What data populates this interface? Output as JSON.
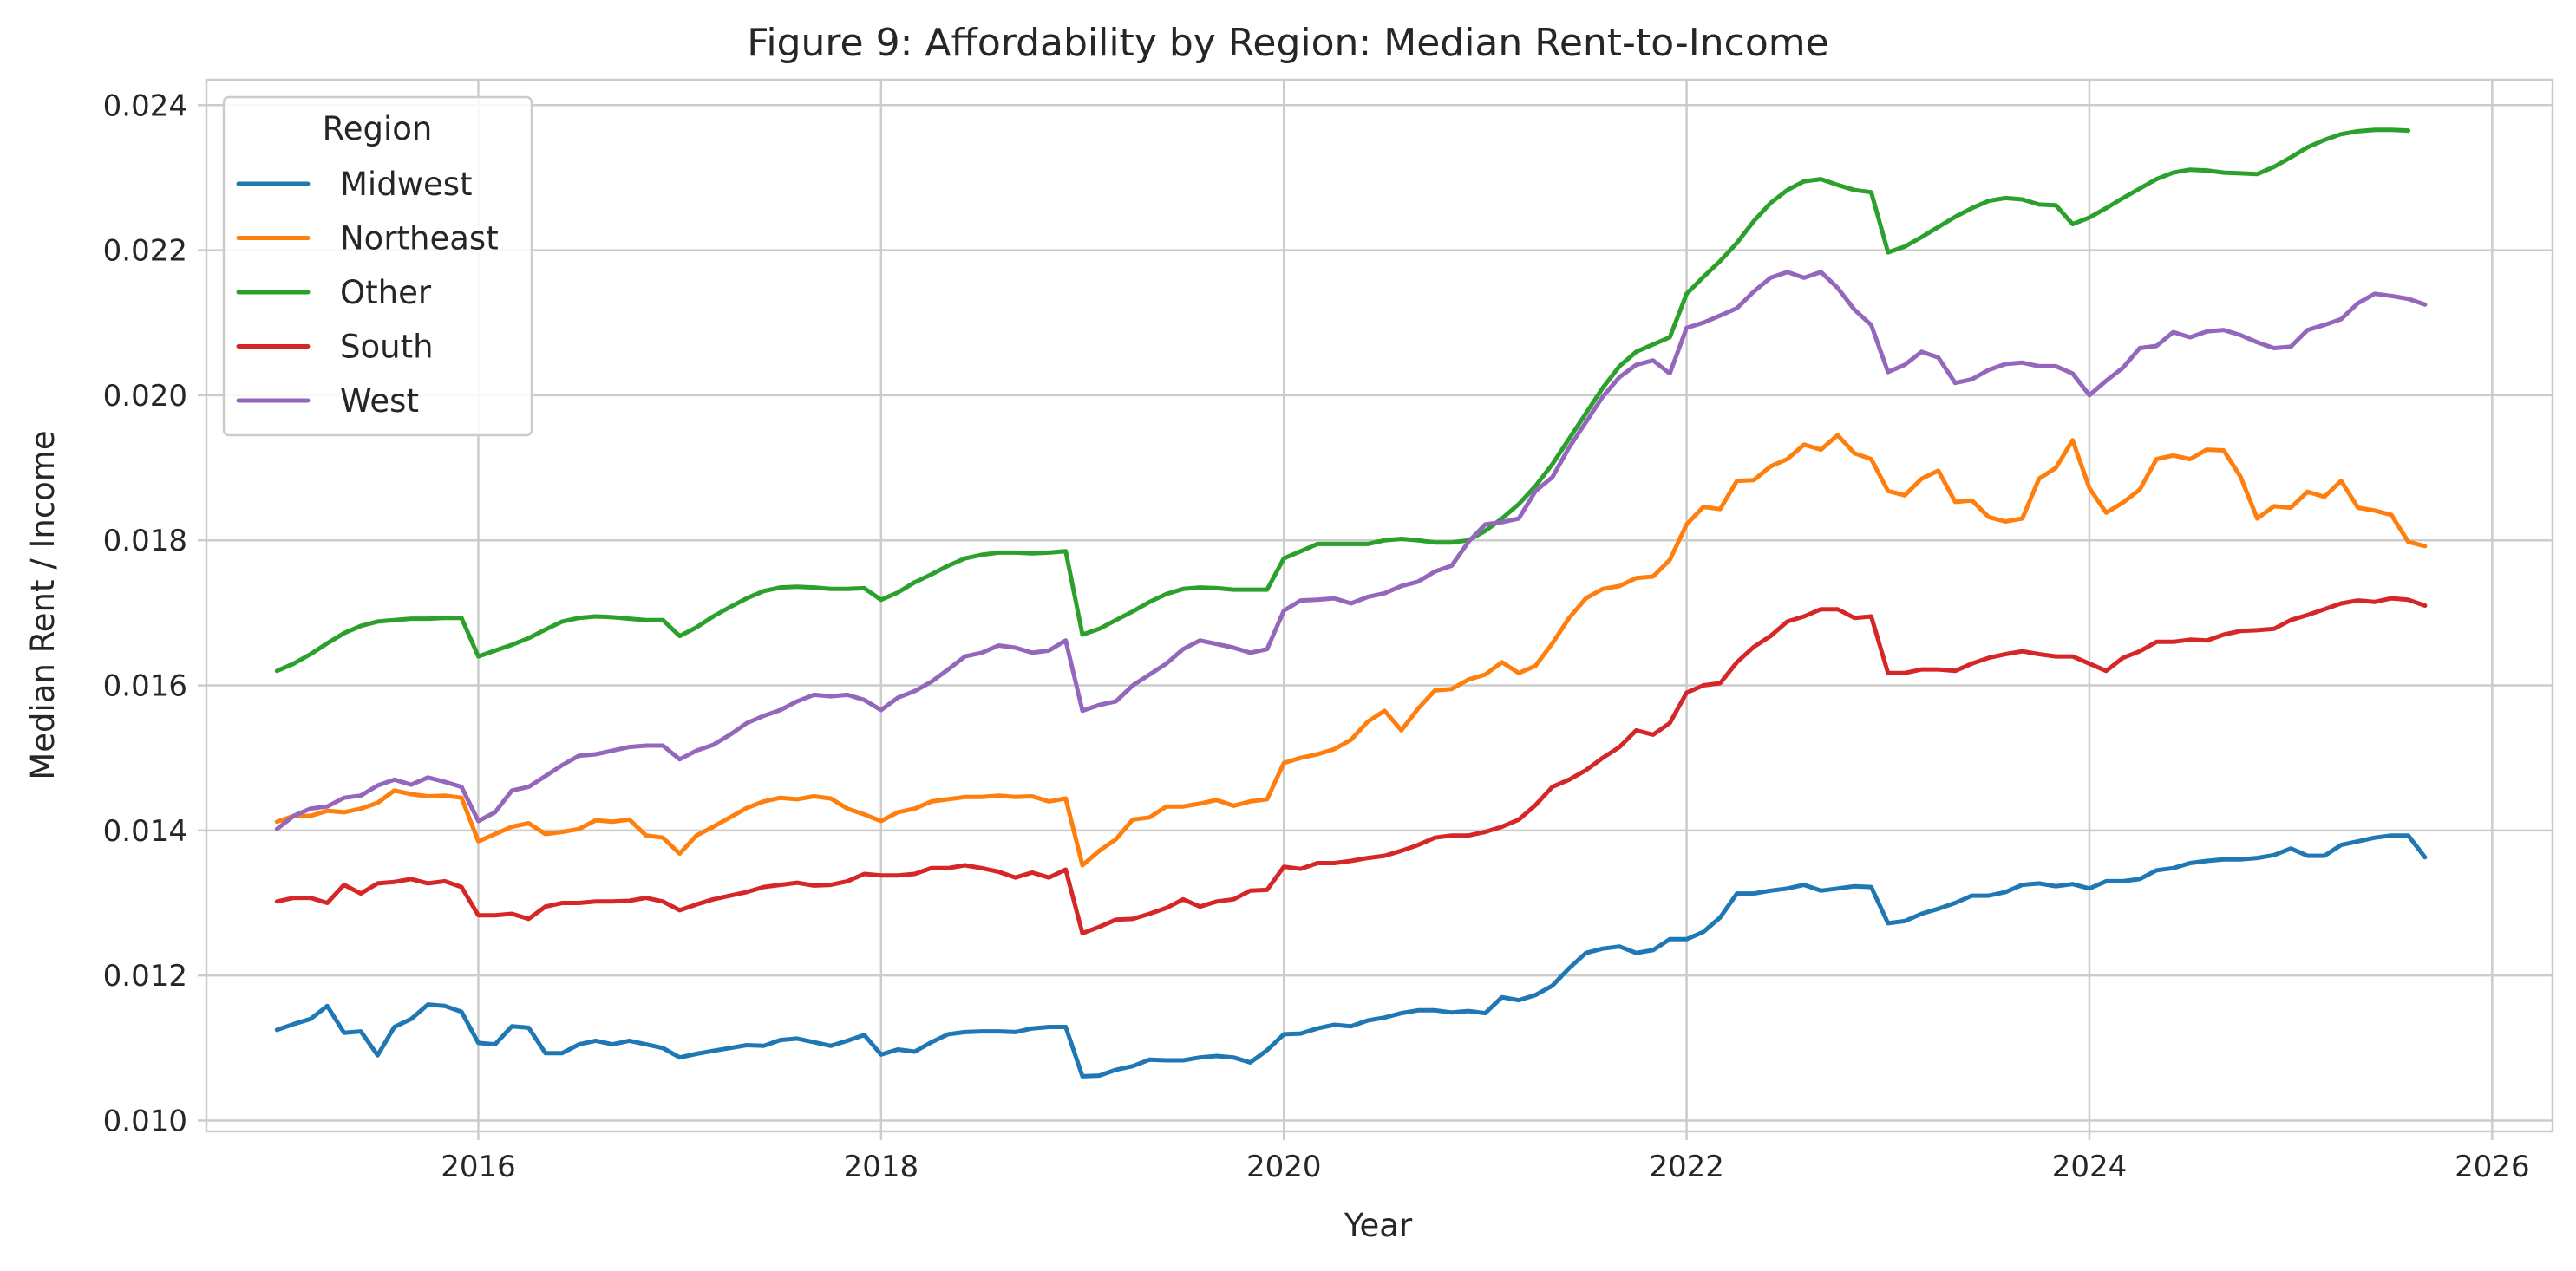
{
  "chart_data": {
    "type": "line",
    "title": "Figure 9: Affordability by Region: Median Rent-to-Income",
    "xlabel": "Year",
    "ylabel": "Median Rent / Income",
    "xlim": [
      2014.65,
      2026.3
    ],
    "ylim": [
      0.00985,
      0.02435
    ],
    "xticks": [
      2016,
      2018,
      2020,
      2022,
      2024,
      2026
    ],
    "yticks": [
      0.01,
      0.012,
      0.014,
      0.016,
      0.018,
      0.02,
      0.022,
      0.024
    ],
    "xtick_labels": [
      "2016",
      "2018",
      "2020",
      "2022",
      "2024",
      "2026"
    ],
    "ytick_labels": [
      "0.010",
      "0.012",
      "0.014",
      "0.016",
      "0.018",
      "0.020",
      "0.022",
      "0.024"
    ],
    "grid": true,
    "legend": {
      "title": "Region",
      "position": "top-left"
    },
    "x_start": "2015-01",
    "x_step": "month",
    "series": [
      {
        "name": "Midwest",
        "color": "#1f77b4",
        "values": [
          0.01125,
          0.01133,
          0.0114,
          0.01158,
          0.01121,
          0.01123,
          0.0109,
          0.01129,
          0.0114,
          0.0116,
          0.01158,
          0.0115,
          0.01107,
          0.01105,
          0.0113,
          0.01128,
          0.01093,
          0.01093,
          0.01105,
          0.0111,
          0.01105,
          0.0111,
          0.01105,
          0.011,
          0.01087,
          0.01092,
          0.01096,
          0.011,
          0.01104,
          0.01103,
          0.01111,
          0.01113,
          0.01108,
          0.01103,
          0.0111,
          0.01118,
          0.01091,
          0.01098,
          0.01095,
          0.01108,
          0.01119,
          0.01122,
          0.01123,
          0.01123,
          0.01122,
          0.01127,
          0.01129,
          0.01129,
          0.01061,
          0.01062,
          0.0107,
          0.01075,
          0.01084,
          0.01083,
          0.01083,
          0.01087,
          0.01089,
          0.01087,
          0.0108,
          0.01097,
          0.01119,
          0.0112,
          0.01127,
          0.01132,
          0.0113,
          0.01138,
          0.01142,
          0.01148,
          0.01152,
          0.01152,
          0.01149,
          0.01151,
          0.01148,
          0.0117,
          0.01166,
          0.01173,
          0.01186,
          0.0121,
          0.01231,
          0.01237,
          0.0124,
          0.01231,
          0.01235,
          0.0125,
          0.0125,
          0.0126,
          0.0128,
          0.01313,
          0.01313,
          0.01317,
          0.0132,
          0.01325,
          0.01317,
          0.0132,
          0.01323,
          0.01322,
          0.01272,
          0.01275,
          0.01285,
          0.01292,
          0.013,
          0.0131,
          0.0131,
          0.01315,
          0.01325,
          0.01327,
          0.01323,
          0.01326,
          0.0132,
          0.0133,
          0.0133,
          0.01333,
          0.01345,
          0.01348,
          0.01355,
          0.01358,
          0.0136,
          0.0136,
          0.01362,
          0.01366,
          0.01375,
          0.01365,
          0.01365,
          0.0138,
          0.01385,
          0.0139,
          0.01393,
          0.01393,
          0.01363
        ]
      },
      {
        "name": "Northeast",
        "color": "#ff7f0e",
        "values": [
          0.01412,
          0.0142,
          0.0142,
          0.01427,
          0.01425,
          0.0143,
          0.01438,
          0.01455,
          0.0145,
          0.01447,
          0.01448,
          0.01445,
          0.01385,
          0.01395,
          0.01405,
          0.0141,
          0.01395,
          0.01398,
          0.01402,
          0.01414,
          0.01412,
          0.01415,
          0.01393,
          0.0139,
          0.01368,
          0.01393,
          0.01405,
          0.01418,
          0.01431,
          0.0144,
          0.01445,
          0.01443,
          0.01447,
          0.01444,
          0.0143,
          0.01422,
          0.01413,
          0.01425,
          0.0143,
          0.0144,
          0.01443,
          0.01446,
          0.01446,
          0.01448,
          0.01446,
          0.01447,
          0.0144,
          0.01444,
          0.01352,
          0.01372,
          0.01388,
          0.01415,
          0.01418,
          0.01433,
          0.01433,
          0.01437,
          0.01442,
          0.01434,
          0.0144,
          0.01443,
          0.01493,
          0.015,
          0.01505,
          0.01512,
          0.01525,
          0.0155,
          0.01565,
          0.01538,
          0.01568,
          0.01593,
          0.01595,
          0.01608,
          0.01615,
          0.01632,
          0.01617,
          0.01627,
          0.01658,
          0.01693,
          0.0172,
          0.01733,
          0.01737,
          0.01748,
          0.0175,
          0.01773,
          0.01822,
          0.01846,
          0.01843,
          0.01882,
          0.01883,
          0.01902,
          0.01912,
          0.01932,
          0.01925,
          0.01945,
          0.0192,
          0.01912,
          0.01868,
          0.01862,
          0.01885,
          0.01896,
          0.01853,
          0.01855,
          0.01832,
          0.01826,
          0.0183,
          0.01885,
          0.019,
          0.01938,
          0.01872,
          0.01838,
          0.01852,
          0.0187,
          0.01912,
          0.01917,
          0.01912,
          0.01925,
          0.01924,
          0.01888,
          0.0183,
          0.01847,
          0.01845,
          0.01867,
          0.0186,
          0.01882,
          0.01845,
          0.01841,
          0.01835,
          0.01798,
          0.01792
        ]
      },
      {
        "name": "Other",
        "color": "#2ca02c",
        "values": [
          0.0162,
          0.0163,
          0.01643,
          0.01658,
          0.01672,
          0.01682,
          0.01688,
          0.0169,
          0.01692,
          0.01692,
          0.01693,
          0.01693,
          0.0164,
          0.01648,
          0.01656,
          0.01665,
          0.01677,
          0.01688,
          0.01693,
          0.01695,
          0.01694,
          0.01692,
          0.0169,
          0.0169,
          0.01668,
          0.0168,
          0.01695,
          0.01708,
          0.0172,
          0.0173,
          0.01735,
          0.01736,
          0.01735,
          0.01733,
          0.01733,
          0.01734,
          0.01718,
          0.01728,
          0.01742,
          0.01753,
          0.01765,
          0.01775,
          0.0178,
          0.01783,
          0.01783,
          0.01782,
          0.01783,
          0.01785,
          0.0167,
          0.01678,
          0.0169,
          0.01702,
          0.01715,
          0.01726,
          0.01733,
          0.01735,
          0.01734,
          0.01732,
          0.01732,
          0.01732,
          0.01775,
          0.01785,
          0.01795,
          0.01795,
          0.01795,
          0.01795,
          0.018,
          0.01802,
          0.018,
          0.01797,
          0.01797,
          0.018,
          0.01813,
          0.0183,
          0.0185,
          0.01875,
          0.01905,
          0.0194,
          0.01975,
          0.0201,
          0.0204,
          0.0206,
          0.0207,
          0.0208,
          0.0214,
          0.02163,
          0.02185,
          0.0221,
          0.0224,
          0.02265,
          0.02283,
          0.02295,
          0.02298,
          0.0229,
          0.02283,
          0.0228,
          0.02197,
          0.02205,
          0.02218,
          0.02232,
          0.02246,
          0.02258,
          0.02268,
          0.02272,
          0.0227,
          0.02263,
          0.02262,
          0.02236,
          0.02245,
          0.02258,
          0.02272,
          0.02285,
          0.02298,
          0.02307,
          0.02311,
          0.0231,
          0.02307,
          0.02306,
          0.02305,
          0.02315,
          0.02328,
          0.02342,
          0.02352,
          0.0236,
          0.02364,
          0.02366,
          0.02366,
          0.02365
        ]
      },
      {
        "name": "South",
        "color": "#d62728",
        "values": [
          0.01302,
          0.01307,
          0.01307,
          0.013,
          0.01325,
          0.01313,
          0.01327,
          0.01329,
          0.01333,
          0.01327,
          0.0133,
          0.01322,
          0.01283,
          0.01283,
          0.01285,
          0.01278,
          0.01295,
          0.013,
          0.013,
          0.01302,
          0.01302,
          0.01303,
          0.01307,
          0.01302,
          0.0129,
          0.01298,
          0.01305,
          0.0131,
          0.01315,
          0.01322,
          0.01325,
          0.01328,
          0.01324,
          0.01325,
          0.0133,
          0.0134,
          0.01338,
          0.01338,
          0.0134,
          0.01348,
          0.01348,
          0.01352,
          0.01348,
          0.01343,
          0.01335,
          0.01342,
          0.01335,
          0.01346,
          0.01258,
          0.01267,
          0.01277,
          0.01278,
          0.01285,
          0.01293,
          0.01305,
          0.01295,
          0.01302,
          0.01305,
          0.01317,
          0.01318,
          0.0135,
          0.01347,
          0.01355,
          0.01355,
          0.01358,
          0.01362,
          0.01365,
          0.01372,
          0.0138,
          0.0139,
          0.01393,
          0.01393,
          0.01398,
          0.01405,
          0.01415,
          0.01435,
          0.0146,
          0.0147,
          0.01483,
          0.015,
          0.01515,
          0.01538,
          0.01532,
          0.01548,
          0.0159,
          0.016,
          0.01603,
          0.01632,
          0.01653,
          0.01668,
          0.01688,
          0.01695,
          0.01705,
          0.01705,
          0.01693,
          0.01695,
          0.01617,
          0.01617,
          0.01622,
          0.01622,
          0.0162,
          0.0163,
          0.01638,
          0.01643,
          0.01647,
          0.01643,
          0.0164,
          0.0164,
          0.0163,
          0.0162,
          0.01638,
          0.01647,
          0.0166,
          0.0166,
          0.01663,
          0.01662,
          0.0167,
          0.01675,
          0.01676,
          0.01678,
          0.0169,
          0.01697,
          0.01705,
          0.01713,
          0.01717,
          0.01715,
          0.0172,
          0.01718,
          0.0171
        ]
      },
      {
        "name": "West",
        "color": "#9467bd",
        "values": [
          0.01402,
          0.0142,
          0.0143,
          0.01433,
          0.01445,
          0.01448,
          0.01462,
          0.0147,
          0.01463,
          0.01473,
          0.01467,
          0.0146,
          0.01413,
          0.01425,
          0.01455,
          0.0146,
          0.01475,
          0.0149,
          0.01503,
          0.01505,
          0.0151,
          0.01515,
          0.01517,
          0.01517,
          0.01498,
          0.0151,
          0.01518,
          0.01532,
          0.01548,
          0.01558,
          0.01566,
          0.01578,
          0.01587,
          0.01585,
          0.01587,
          0.0158,
          0.01566,
          0.01583,
          0.01592,
          0.01605,
          0.01622,
          0.0164,
          0.01645,
          0.01655,
          0.01652,
          0.01645,
          0.01648,
          0.01662,
          0.01565,
          0.01573,
          0.01578,
          0.016,
          0.01615,
          0.0163,
          0.0165,
          0.01662,
          0.01657,
          0.01652,
          0.01645,
          0.0165,
          0.01703,
          0.01717,
          0.01718,
          0.0172,
          0.01713,
          0.01722,
          0.01727,
          0.01737,
          0.01743,
          0.01757,
          0.01765,
          0.01798,
          0.01822,
          0.01825,
          0.0183,
          0.01868,
          0.01887,
          0.01928,
          0.01963,
          0.01998,
          0.02025,
          0.02042,
          0.02048,
          0.0203,
          0.02093,
          0.021,
          0.0211,
          0.0212,
          0.02143,
          0.02162,
          0.0217,
          0.02162,
          0.0217,
          0.02148,
          0.02118,
          0.02097,
          0.02032,
          0.02042,
          0.0206,
          0.02052,
          0.02017,
          0.02022,
          0.02035,
          0.02043,
          0.02045,
          0.0204,
          0.0204,
          0.0203,
          0.02,
          0.0202,
          0.02038,
          0.02065,
          0.02068,
          0.02087,
          0.0208,
          0.02088,
          0.0209,
          0.02083,
          0.02073,
          0.02065,
          0.02067,
          0.0209,
          0.02097,
          0.02105,
          0.02127,
          0.0214,
          0.02137,
          0.02133,
          0.02125
        ]
      }
    ]
  }
}
